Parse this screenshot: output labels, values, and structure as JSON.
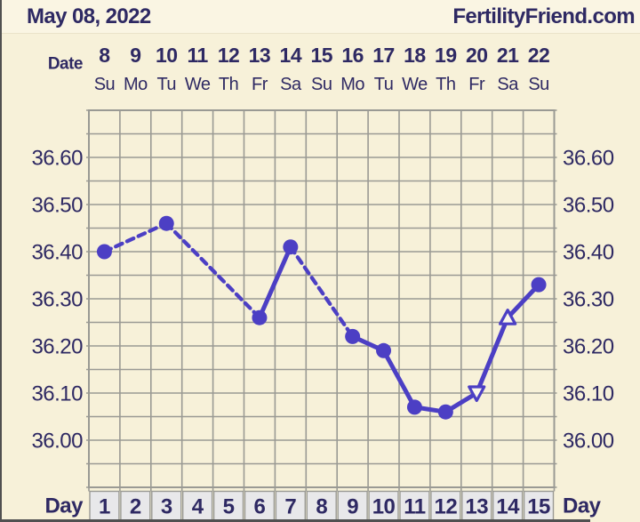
{
  "header": {
    "date_title": "May 08, 2022",
    "brand": "FertilityFriend.com"
  },
  "row_labels": {
    "date": "Date",
    "day_left": "Day",
    "day_right": "Day"
  },
  "chart_data": {
    "type": "line",
    "title": "Basal body temperature chart (FertilityFriend)",
    "x_axis_top": {
      "label": "Date",
      "dates": [
        "8",
        "9",
        "10",
        "11",
        "12",
        "13",
        "14",
        "15",
        "16",
        "17",
        "18",
        "19",
        "20",
        "21",
        "22"
      ],
      "weekdays": [
        "Su",
        "Mo",
        "Tu",
        "We",
        "Th",
        "Fr",
        "Sa",
        "Su",
        "Mo",
        "Tu",
        "We",
        "Th",
        "Fr",
        "Sa",
        "Su"
      ]
    },
    "x_axis_bottom": {
      "label": "Day",
      "days": [
        "1",
        "2",
        "3",
        "4",
        "5",
        "6",
        "7",
        "8",
        "9",
        "10",
        "11",
        "12",
        "13",
        "14",
        "15"
      ]
    },
    "y_axis": {
      "tick_labels": [
        "36.60",
        "36.50",
        "36.40",
        "36.30",
        "36.20",
        "36.10",
        "36.00"
      ],
      "tick_values": [
        36.6,
        36.5,
        36.4,
        36.3,
        36.2,
        36.1,
        36.0
      ],
      "ylim": [
        35.9,
        36.7
      ],
      "grid_step": 0.05,
      "label_sides": "both"
    },
    "series": [
      {
        "name": "temperature",
        "points": [
          {
            "day": 1,
            "value": 36.4,
            "marker": "circle"
          },
          {
            "day": 2,
            "value": null,
            "marker": null
          },
          {
            "day": 3,
            "value": 36.46,
            "marker": "circle"
          },
          {
            "day": 4,
            "value": null,
            "marker": null
          },
          {
            "day": 5,
            "value": null,
            "marker": null
          },
          {
            "day": 6,
            "value": 36.26,
            "marker": "circle"
          },
          {
            "day": 7,
            "value": 36.41,
            "marker": "circle"
          },
          {
            "day": 8,
            "value": null,
            "marker": null
          },
          {
            "day": 9,
            "value": 36.22,
            "marker": "circle"
          },
          {
            "day": 10,
            "value": 36.19,
            "marker": "circle"
          },
          {
            "day": 11,
            "value": 36.07,
            "marker": "circle"
          },
          {
            "day": 12,
            "value": 36.06,
            "marker": "circle"
          },
          {
            "day": 13,
            "value": 36.1,
            "marker": "triangle-down-open"
          },
          {
            "day": 14,
            "value": 36.26,
            "marker": "triangle-up-open"
          },
          {
            "day": 15,
            "value": 36.33,
            "marker": "circle"
          }
        ],
        "segments": [
          {
            "from": 1,
            "to": 3,
            "style": "dashed"
          },
          {
            "from": 3,
            "to": 6,
            "style": "dashed"
          },
          {
            "from": 6,
            "to": 7,
            "style": "solid"
          },
          {
            "from": 7,
            "to": 9,
            "style": "dashed"
          },
          {
            "from": 9,
            "to": 10,
            "style": "solid"
          },
          {
            "from": 10,
            "to": 11,
            "style": "solid"
          },
          {
            "from": 11,
            "to": 12,
            "style": "solid"
          },
          {
            "from": 12,
            "to": 13,
            "style": "solid"
          },
          {
            "from": 13,
            "to": 14,
            "style": "solid"
          },
          {
            "from": 14,
            "to": 15,
            "style": "solid"
          }
        ]
      }
    ],
    "grid": true,
    "legend": false
  },
  "colors": {
    "background": "#f7f1d9",
    "header_background": "#faf5e3",
    "text": "#2e2963",
    "line": "#4c3fc4",
    "grid": "#9a9a94",
    "day_cell_fill": "#e8e8ea",
    "day_cell_border": "#9a9a94",
    "marker_open_fill": "#fbf7ea",
    "screen_edge": "#505050"
  }
}
